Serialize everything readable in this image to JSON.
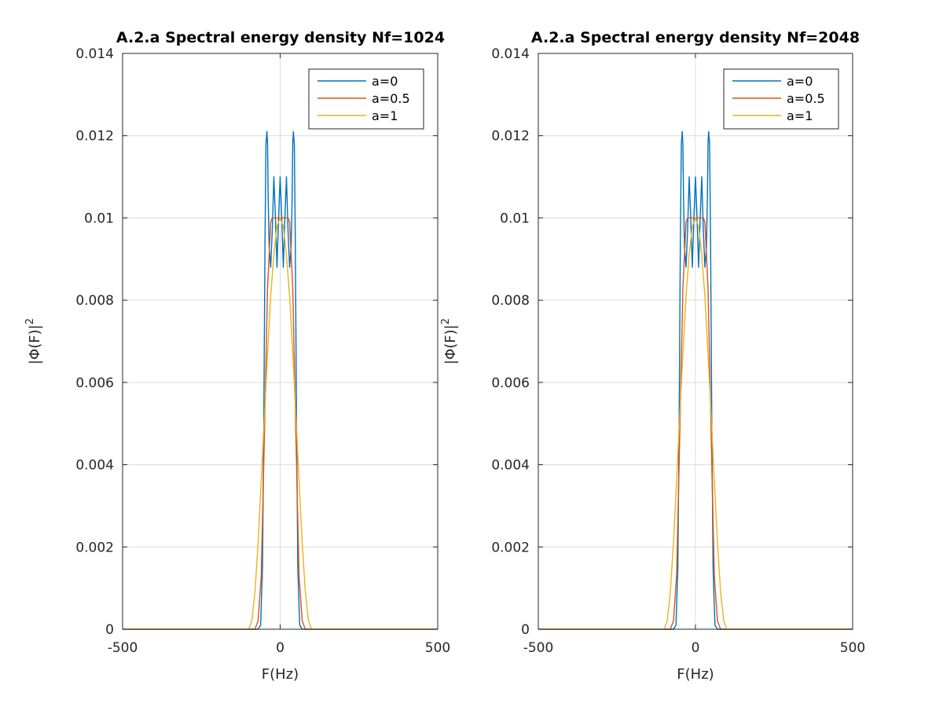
{
  "chart_data": [
    {
      "type": "line",
      "title": "A.2.a Spectral energy density Nf=1024",
      "xlabel": "F(Hz)",
      "ylabel": "|Φ(F)|²",
      "ylabel_base": "|Φ(F)|",
      "ylabel_exp": "2",
      "xlim": [
        -500,
        500
      ],
      "ylim": [
        0,
        0.014
      ],
      "xticks": [
        -500,
        0,
        500
      ],
      "xtick_labels": [
        "-500",
        "0",
        "500"
      ],
      "yticks": [
        0,
        0.002,
        0.004,
        0.006,
        0.008,
        0.01,
        0.012,
        0.014
      ],
      "ytick_labels": [
        "0",
        "0.002",
        "0.004",
        "0.006",
        "0.008",
        "0.01",
        "0.012",
        "0.014"
      ],
      "grid": true,
      "legend_position": "top-right",
      "series": [
        {
          "name": "a=0",
          "color": "#0072BD",
          "x": [
            -500,
            -70,
            -62,
            -56,
            -52,
            -48,
            -45,
            -42,
            -40,
            -38,
            -35,
            -30,
            -25,
            -20,
            -15,
            -10,
            -5,
            0,
            5,
            10,
            15,
            20,
            25,
            30,
            35,
            38,
            40,
            42,
            45,
            48,
            52,
            56,
            62,
            70,
            500
          ],
          "y": [
            0,
            0,
            0.0001,
            0.0015,
            0.005,
            0.0095,
            0.0118,
            0.0121,
            0.0118,
            0.0105,
            0.0093,
            0.0088,
            0.0097,
            0.011,
            0.01,
            0.0088,
            0.01,
            0.011,
            0.01,
            0.0088,
            0.01,
            0.011,
            0.0097,
            0.0088,
            0.0093,
            0.0105,
            0.0118,
            0.0121,
            0.0118,
            0.0095,
            0.005,
            0.0015,
            0.0001,
            0,
            0
          ]
        },
        {
          "name": "a=0.5",
          "color": "#D95319",
          "x": [
            -500,
            -80,
            -70,
            -60,
            -50,
            -40,
            -30,
            -25,
            -20,
            0,
            20,
            25,
            30,
            40,
            50,
            60,
            70,
            80,
            500
          ],
          "y": [
            0,
            0,
            0.0002,
            0.0013,
            0.0047,
            0.0083,
            0.0099,
            0.01,
            0.01,
            0.01,
            0.01,
            0.01,
            0.0099,
            0.0083,
            0.0047,
            0.0013,
            0.0002,
            0,
            0
          ]
        },
        {
          "name": "a=1",
          "color": "#EDB120",
          "x": [
            -500,
            -100,
            -90,
            -80,
            -70,
            -60,
            -50,
            -40,
            -30,
            -20,
            -10,
            0,
            10,
            20,
            30,
            40,
            50,
            60,
            70,
            80,
            90,
            100,
            500
          ],
          "y": [
            0,
            0,
            0.0002,
            0.0009,
            0.0021,
            0.0036,
            0.0052,
            0.0067,
            0.0081,
            0.0091,
            0.0098,
            0.01,
            0.0098,
            0.0091,
            0.0081,
            0.0067,
            0.0052,
            0.0036,
            0.0021,
            0.0009,
            0.0002,
            0,
            0
          ]
        }
      ]
    },
    {
      "type": "line",
      "title": "A.2.a Spectral energy density Nf=2048",
      "xlabel": "F(Hz)",
      "ylabel": "|Φ(F)|²",
      "ylabel_base": "|Φ(F)|",
      "ylabel_exp": "2",
      "xlim": [
        -500,
        500
      ],
      "ylim": [
        0,
        0.014
      ],
      "xticks": [
        -500,
        0,
        500
      ],
      "xtick_labels": [
        "-500",
        "0",
        "500"
      ],
      "yticks": [
        0,
        0.002,
        0.004,
        0.006,
        0.008,
        0.01,
        0.012,
        0.014
      ],
      "ytick_labels": [
        "0",
        "0.002",
        "0.004",
        "0.006",
        "0.008",
        "0.01",
        "0.012",
        "0.014"
      ],
      "grid": true,
      "legend_position": "top-right",
      "series": [
        {
          "name": "a=0",
          "color": "#0072BD",
          "x": [
            -500,
            -70,
            -62,
            -56,
            -52,
            -48,
            -45,
            -42,
            -40,
            -38,
            -35,
            -30,
            -25,
            -20,
            -15,
            -10,
            -5,
            0,
            5,
            10,
            15,
            20,
            25,
            30,
            35,
            38,
            40,
            42,
            45,
            48,
            52,
            56,
            62,
            70,
            500
          ],
          "y": [
            0,
            0,
            0.0001,
            0.0015,
            0.005,
            0.0095,
            0.0118,
            0.0121,
            0.0118,
            0.0105,
            0.0093,
            0.0088,
            0.0097,
            0.011,
            0.01,
            0.0088,
            0.01,
            0.011,
            0.01,
            0.0088,
            0.01,
            0.011,
            0.0097,
            0.0088,
            0.0093,
            0.0105,
            0.0118,
            0.0121,
            0.0118,
            0.0095,
            0.005,
            0.0015,
            0.0001,
            0,
            0
          ]
        },
        {
          "name": "a=0.5",
          "color": "#D95319",
          "x": [
            -500,
            -80,
            -70,
            -60,
            -50,
            -40,
            -30,
            -25,
            -20,
            0,
            20,
            25,
            30,
            40,
            50,
            60,
            70,
            80,
            500
          ],
          "y": [
            0,
            0,
            0.0002,
            0.0013,
            0.0047,
            0.0083,
            0.0099,
            0.01,
            0.01,
            0.01,
            0.01,
            0.01,
            0.0099,
            0.0083,
            0.0047,
            0.0013,
            0.0002,
            0,
            0
          ]
        },
        {
          "name": "a=1",
          "color": "#EDB120",
          "x": [
            -500,
            -100,
            -90,
            -80,
            -70,
            -60,
            -50,
            -40,
            -30,
            -20,
            -10,
            0,
            10,
            20,
            30,
            40,
            50,
            60,
            70,
            80,
            90,
            100,
            500
          ],
          "y": [
            0,
            0,
            0.0002,
            0.0009,
            0.0021,
            0.0036,
            0.0052,
            0.0067,
            0.0081,
            0.0091,
            0.0098,
            0.01,
            0.0098,
            0.0091,
            0.0081,
            0.0067,
            0.0052,
            0.0036,
            0.0021,
            0.0009,
            0.0002,
            0,
            0
          ]
        }
      ]
    }
  ]
}
